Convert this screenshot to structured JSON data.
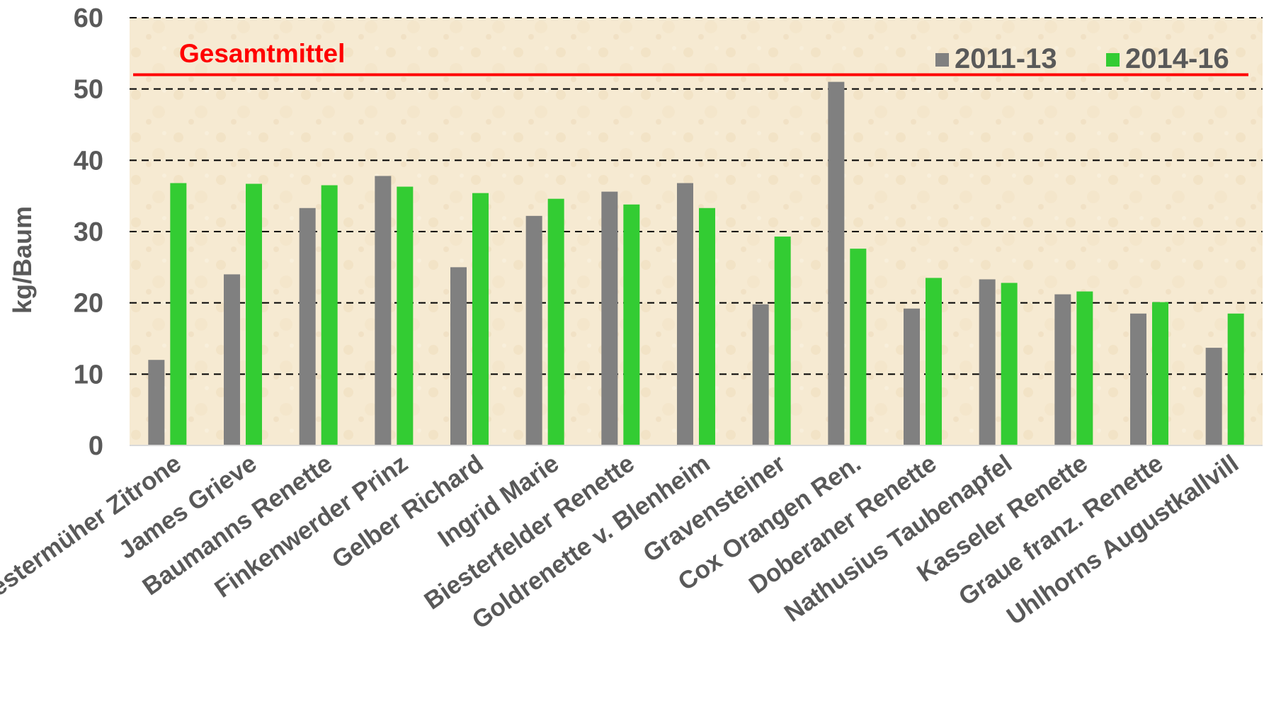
{
  "chart_data": {
    "type": "bar",
    "categories": [
      "Biestermüher Zitrone",
      "James Grieve",
      "Baumanns Renette",
      "Finkenwerder Prinz",
      "Gelber Richard",
      "Ingrid Marie",
      "Biesterfelder Renette",
      "Goldrenette v. Blenheim",
      "Gravensteiner",
      "Cox Orangen Ren.",
      "Doberaner Renette",
      "Nathusius Taubenapfel",
      "Kasseler Renette",
      "Graue franz. Renette",
      "Uhlhorns Augustkallvill"
    ],
    "series": [
      {
        "name": "2011-13",
        "color": "#808080",
        "values": [
          12,
          24,
          33.3,
          37.8,
          25,
          32.2,
          35.6,
          36.8,
          19.8,
          51,
          19.2,
          23.3,
          21.2,
          18.5,
          13.7
        ]
      },
      {
        "name": "2014-16",
        "color": "#33cc33",
        "values": [
          36.8,
          36.7,
          36.5,
          36.3,
          35.4,
          34.6,
          33.8,
          33.3,
          29.3,
          27.6,
          23.5,
          22.8,
          21.6,
          20.1,
          18.5
        ]
      }
    ],
    "xlabel": "",
    "ylabel": "kg/Baum",
    "ylim": [
      0,
      60
    ],
    "yticks": [
      0,
      10,
      20,
      30,
      40,
      50,
      60
    ],
    "grid": true,
    "legend": "top-right",
    "reference_line": {
      "label": "Gesamtmittel",
      "value": 52,
      "color": "#ff0000"
    }
  }
}
